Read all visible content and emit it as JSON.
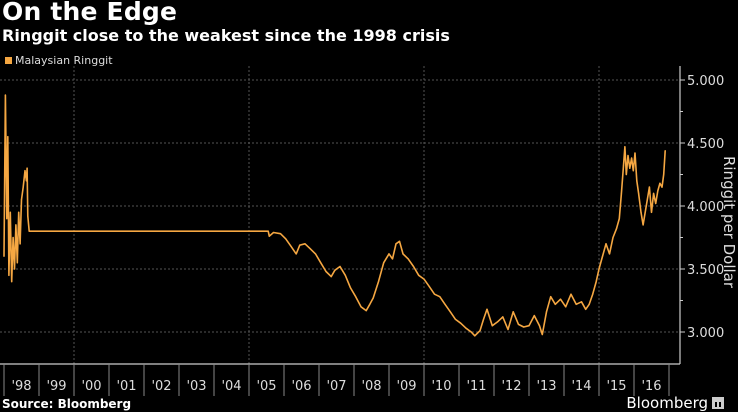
{
  "header": {
    "title": "On the Edge",
    "subtitle": "Ringgit close to the weakest since the 1998 crisis"
  },
  "footer": {
    "source": "Source: Bloomberg",
    "brand": "Bloomberg"
  },
  "colors": {
    "background": "#000000",
    "series": "#f5a742",
    "grid": "#555555",
    "axis": "#cccccc"
  },
  "chart_data": {
    "type": "line",
    "title": "On the Edge",
    "subtitle": "Ringgit close to the weakest since the 1998 crisis",
    "xlabel": "",
    "ylabel": "Ringgit per Dollar",
    "legend": {
      "entries": [
        "Malaysian Ringgit"
      ],
      "position": "top-left"
    },
    "y_axis_side": "right",
    "ylim": [
      2.8,
      5.0
    ],
    "xlim": [
      1998.0,
      2017.0
    ],
    "yticks": [
      5.0,
      4.5,
      4.0,
      3.5,
      3.0
    ],
    "ytick_labels": [
      "5.000",
      "4.500",
      "4.000",
      "3.500",
      "3.000"
    ],
    "xtick_labels": [
      "'98",
      "'99",
      "'00",
      "'01",
      "'02",
      "'03",
      "'04",
      "'05",
      "'06",
      "'07",
      "'08",
      "'09",
      "'10",
      "'11",
      "'12",
      "'13",
      "'14",
      "'15",
      "'16"
    ],
    "vertical_gridlines_at": [
      2000,
      2005,
      2010,
      2015
    ],
    "grid": true,
    "series": [
      {
        "name": "Malaysian Ringgit",
        "x": [
          1998.0,
          1998.04,
          1998.08,
          1998.11,
          1998.14,
          1998.18,
          1998.22,
          1998.26,
          1998.3,
          1998.34,
          1998.38,
          1998.42,
          1998.46,
          1998.5,
          1998.55,
          1998.6,
          1998.64,
          1998.66,
          1998.68,
          1998.72,
          1999.0,
          2000.0,
          2001.0,
          2002.0,
          2003.0,
          2004.0,
          2005.0,
          2005.55,
          2005.58,
          2005.7,
          2005.9,
          2006.05,
          2006.2,
          2006.35,
          2006.45,
          2006.6,
          2006.75,
          2006.9,
          2007.05,
          2007.2,
          2007.35,
          2007.45,
          2007.6,
          2007.75,
          2007.9,
          2008.05,
          2008.2,
          2008.35,
          2008.45,
          2008.55,
          2008.7,
          2008.85,
          2009.0,
          2009.1,
          2009.2,
          2009.3,
          2009.4,
          2009.55,
          2009.7,
          2009.85,
          2010.0,
          2010.15,
          2010.3,
          2010.45,
          2010.6,
          2010.75,
          2010.9,
          2011.05,
          2011.2,
          2011.35,
          2011.45,
          2011.6,
          2011.7,
          2011.8,
          2011.95,
          2012.1,
          2012.25,
          2012.4,
          2012.55,
          2012.7,
          2012.85,
          2013.0,
          2013.15,
          2013.3,
          2013.38,
          2013.5,
          2013.62,
          2013.75,
          2013.9,
          2014.05,
          2014.2,
          2014.35,
          2014.5,
          2014.62,
          2014.72,
          2014.82,
          2014.92,
          2015.0,
          2015.1,
          2015.2,
          2015.3,
          2015.4,
          2015.5,
          2015.58,
          2015.64,
          2015.7,
          2015.74,
          2015.78,
          2015.83,
          2015.88,
          2015.93,
          2015.98,
          2016.03,
          2016.08,
          2016.13,
          2016.2,
          2016.26,
          2016.32,
          2016.38,
          2016.44,
          2016.5,
          2016.56,
          2016.62,
          2016.68,
          2016.74,
          2016.8,
          2016.85,
          2016.89
        ],
        "y": [
          3.6,
          4.88,
          3.9,
          4.55,
          3.45,
          3.95,
          3.4,
          3.75,
          3.5,
          3.85,
          3.55,
          3.95,
          3.7,
          4.05,
          4.15,
          4.28,
          4.2,
          4.3,
          3.92,
          3.8,
          3.8,
          3.8,
          3.8,
          3.8,
          3.8,
          3.8,
          3.8,
          3.8,
          3.76,
          3.79,
          3.78,
          3.74,
          3.68,
          3.62,
          3.69,
          3.7,
          3.66,
          3.62,
          3.55,
          3.48,
          3.44,
          3.49,
          3.52,
          3.45,
          3.35,
          3.28,
          3.2,
          3.17,
          3.22,
          3.27,
          3.4,
          3.55,
          3.62,
          3.58,
          3.7,
          3.72,
          3.62,
          3.58,
          3.52,
          3.45,
          3.42,
          3.36,
          3.3,
          3.28,
          3.22,
          3.16,
          3.1,
          3.07,
          3.03,
          3.0,
          2.97,
          3.01,
          3.1,
          3.18,
          3.05,
          3.08,
          3.12,
          3.02,
          3.16,
          3.06,
          3.04,
          3.05,
          3.13,
          3.05,
          2.98,
          3.16,
          3.28,
          3.22,
          3.26,
          3.2,
          3.3,
          3.22,
          3.24,
          3.18,
          3.22,
          3.3,
          3.4,
          3.5,
          3.6,
          3.7,
          3.62,
          3.75,
          3.82,
          3.9,
          4.1,
          4.32,
          4.47,
          4.25,
          4.4,
          4.3,
          4.38,
          4.28,
          4.42,
          4.2,
          4.1,
          3.95,
          3.85,
          3.95,
          4.05,
          4.15,
          3.95,
          4.1,
          4.02,
          4.12,
          4.18,
          4.15,
          4.25,
          4.44
        ]
      }
    ]
  }
}
